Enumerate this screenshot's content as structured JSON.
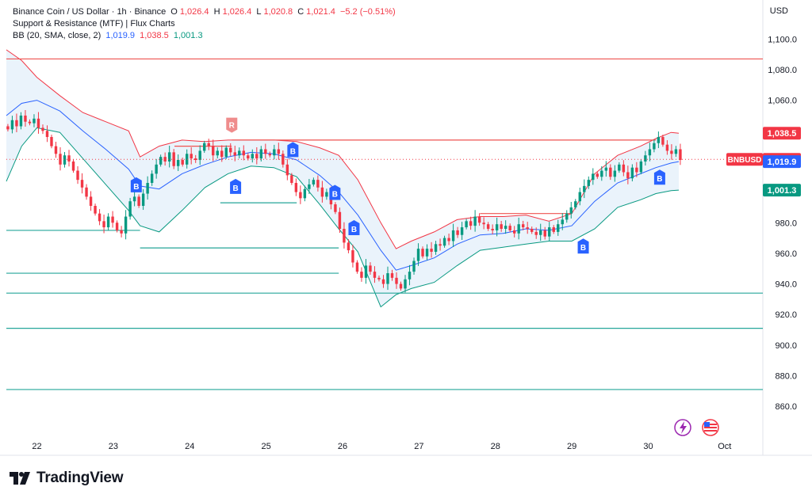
{
  "legend": {
    "symbol": "Binance Coin / US Dollar · 1h · Binance",
    "open_label": "O",
    "open": "1,026.4",
    "high_label": "H",
    "high": "1,026.4",
    "low_label": "L",
    "low": "1,020.8",
    "close_label": "C",
    "close": "1,021.4",
    "change": "−5.2 (−0.51%)",
    "indicator1": "Support & Resistance (MTF) | Flux Charts",
    "bb_label": "BB (20, SMA, close, 2)",
    "bb_basis": "1,019.9",
    "bb_upper": "1,038.5",
    "bb_lower": "1,001.3"
  },
  "currency": "USD",
  "brand": "TradingView",
  "colors": {
    "up": "#089981",
    "down": "#f23645",
    "basis": "#2962ff",
    "upper": "#f23645",
    "lower": "#089981",
    "band_fill": "#eaf3fb",
    "support": "#26a69a",
    "resistance": "#ef5350",
    "marker_b": "#2962ff",
    "marker_r": "#ef8c8c"
  },
  "chart_data": {
    "type": "candlestick",
    "symbol": "BNBUSD",
    "ylim": [
      842,
      1110
    ],
    "y_ticks": [
      1100,
      1080,
      1060,
      980,
      960,
      940,
      920,
      900,
      880,
      860
    ],
    "y_tick_labels": [
      "1,100.0",
      "1,080.0",
      "1,060.0",
      "980.0",
      "960.0",
      "940.0",
      "920.0",
      "900.0",
      "880.0",
      "860.0"
    ],
    "x_range": [
      21.6,
      31.5
    ],
    "x_ticks": [
      22,
      23,
      24,
      25,
      26,
      27,
      28,
      29,
      30,
      31
    ],
    "x_tick_labels": [
      "22",
      "23",
      "24",
      "25",
      "26",
      "27",
      "28",
      "29",
      "30",
      "Oct"
    ],
    "price_tags": [
      {
        "value": 1038.5,
        "label": "1,038.5",
        "color": "#f23645"
      },
      {
        "value": 1021.4,
        "label": "1,021.4",
        "color": "#f23645",
        "name": "BNBUSD"
      },
      {
        "value": 1019.9,
        "label": "1,019.9",
        "color": "#2962ff"
      },
      {
        "value": 1001.3,
        "label": "1,001.3",
        "color": "#089981"
      }
    ],
    "last_price": 1021.4,
    "candles_path": [
      1041,
      1047,
      1043,
      1050,
      1046,
      1045,
      1048,
      1042,
      1040,
      1036,
      1030,
      1025,
      1018,
      1024,
      1020,
      1014,
      1008,
      1003,
      997,
      991,
      986,
      981,
      977,
      984,
      980,
      975,
      973,
      984,
      994,
      997,
      991,
      999,
      1006,
      1012,
      1018,
      1023,
      1020,
      1026,
      1017,
      1021,
      1018,
      1025,
      1022,
      1021,
      1027,
      1032,
      1030,
      1024,
      1027,
      1023,
      1029,
      1026,
      1024,
      1027,
      1024,
      1022,
      1025,
      1022,
      1028,
      1025,
      1024,
      1028,
      1025,
      1018,
      1011,
      1006,
      1000,
      996,
      1002,
      1005,
      1008,
      1003,
      997,
      1000,
      992,
      987,
      976,
      967,
      962,
      954,
      948,
      944,
      952,
      948,
      944,
      943,
      940,
      947,
      944,
      940,
      937,
      943,
      948,
      955,
      963,
      958,
      963,
      961,
      966,
      965,
      970,
      968,
      975,
      972,
      977,
      981,
      978,
      984,
      980,
      979,
      976,
      975,
      979,
      976,
      978,
      975,
      973,
      979,
      977,
      976,
      974,
      972,
      975,
      971,
      977,
      974,
      979,
      982,
      986,
      990,
      994,
      1000,
      1004,
      1008,
      1012,
      1010,
      1014,
      1016,
      1010,
      1014,
      1018,
      1013,
      1009,
      1016,
      1013,
      1020,
      1024,
      1028,
      1032,
      1036,
      1031,
      1027,
      1025,
      1028,
      1021
    ],
    "bollinger": {
      "x": [
        21.6,
        21.8,
        22.0,
        22.3,
        22.6,
        22.9,
        23.2,
        23.35,
        23.6,
        23.9,
        24.2,
        24.5,
        24.8,
        25.1,
        25.4,
        25.7,
        25.95,
        26.2,
        26.5,
        26.7,
        26.9,
        27.2,
        27.5,
        27.8,
        28.1,
        28.4,
        28.7,
        29.0,
        29.3,
        29.6,
        29.9,
        30.1,
        30.3,
        30.4
      ],
      "upper": [
        1093,
        1086,
        1075,
        1063,
        1052,
        1046,
        1040,
        1023,
        1030,
        1034,
        1033,
        1034,
        1034,
        1034,
        1033,
        1029,
        1024,
        1008,
        980,
        963,
        968,
        974,
        982,
        984,
        984,
        985,
        981,
        986,
        1012,
        1024,
        1030,
        1035,
        1039,
        1038.5
      ],
      "basis": [
        1050,
        1058,
        1060,
        1053,
        1040,
        1028,
        1015,
        1004,
        1002,
        1012,
        1018,
        1023,
        1026,
        1025,
        1021,
        1011,
        1000,
        985,
        962,
        949,
        952,
        957,
        966,
        972,
        973,
        976,
        975,
        978,
        994,
        1006,
        1012,
        1016,
        1019,
        1019.9
      ],
      "lower": [
        1007,
        1030,
        1042,
        1039,
        1022,
        1005,
        988,
        978,
        974,
        988,
        1003,
        1012,
        1017,
        1016,
        1010,
        992,
        976,
        961,
        925,
        933,
        937,
        941,
        952,
        962,
        964,
        966,
        968,
        968,
        976,
        990,
        995,
        999,
        1001,
        1001.3
      ]
    },
    "support_lines": [
      {
        "y": 975,
        "x0": 21.6,
        "x1": 23.35
      },
      {
        "y": 963.5,
        "x0": 23.35,
        "x1": 25.95
      },
      {
        "y": 993,
        "x0": 24.4,
        "x1": 25.4
      },
      {
        "y": 947,
        "x0": 21.6,
        "x1": 25.95
      },
      {
        "y": 934,
        "x0": 21.6,
        "x1": 31.5
      },
      {
        "y": 911,
        "x0": 21.6,
        "x1": 31.5
      },
      {
        "y": 871,
        "x0": 21.6,
        "x1": 31.5
      }
    ],
    "resistance_lines": [
      {
        "y": 1087,
        "x0": 21.6,
        "x1": 31.5
      },
      {
        "y": 1034,
        "x0": 24.55,
        "x1": 30.1
      },
      {
        "y": 1030,
        "x0": 23.8,
        "x1": 24.55
      },
      {
        "y": 986,
        "x0": 27.8,
        "x1": 29.0
      }
    ],
    "markers": [
      {
        "x": 23.3,
        "y": 1004,
        "label": "B",
        "kind": "buy"
      },
      {
        "x": 24.6,
        "y": 1003,
        "label": "B",
        "kind": "buy"
      },
      {
        "x": 25.35,
        "y": 1027,
        "label": "B",
        "kind": "buy"
      },
      {
        "x": 25.9,
        "y": 999,
        "label": "B",
        "kind": "buy"
      },
      {
        "x": 26.15,
        "y": 976,
        "label": "B",
        "kind": "buy"
      },
      {
        "x": 29.15,
        "y": 964,
        "label": "B",
        "kind": "buy"
      },
      {
        "x": 30.15,
        "y": 1009,
        "label": "B",
        "kind": "buy"
      },
      {
        "x": 24.55,
        "y": 1044,
        "label": "R",
        "kind": "sell"
      }
    ]
  }
}
